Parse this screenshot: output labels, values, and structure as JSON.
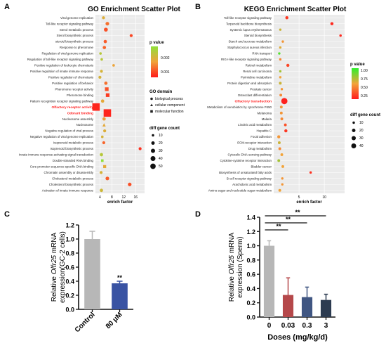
{
  "panels": {
    "a": {
      "label": "A"
    },
    "b": {
      "label": "B"
    },
    "c": {
      "label": "C"
    },
    "d": {
      "label": "D"
    }
  },
  "chart_data": [
    {
      "id": "a",
      "type": "scatter",
      "title": "GO Enrichment Scatter Plot",
      "xlabel": "enrich factor",
      "ylabel": "",
      "xlim": [
        2.5,
        19
      ],
      "xticks": [
        4,
        8,
        12,
        16
      ],
      "grid": true,
      "categories": [
        "Viral genome replication",
        "Toll-like receptor signaling pathway",
        "Sterol metabolic process",
        "Sterol biosynthetic process",
        "steroid biosynthetic process",
        "Response to pheromone",
        "Regulation of viral genome replication",
        "Regulation of toll-like receptor signaling pathway",
        "Positive regulation of leukocyte chemotaxis",
        "Positive regulation of innate immune response",
        "Positive regulation of chemotaxis",
        "Positive regulation of behavior",
        "Pheromone receptor activity",
        "Pheromone binding",
        "Pattern recognition receptor signaling pathway",
        "Olfactory receptor activity",
        "Odorant binding",
        "Nucleosome assembly",
        "Nucleosome",
        "Negative regulation of viral process",
        "Negative regulation of viral genome replication",
        "Isoprenoid metabolic process",
        "Isoprenoid biosynthetic process",
        "Innate immune response-activating signal transduction",
        "Double-stranded RNA binding",
        "Core promoter sequence-specific DNA binding",
        "Chromatin assembly or disassembly",
        "Cholesterol metabolic process",
        "Cholesterol biosynthetic process",
        "Activation of innate immune response"
      ],
      "highlight": [
        "Olfactory receptor activity",
        "Odorant binding"
      ],
      "x": [
        5.2,
        6.5,
        6.0,
        14.5,
        5.8,
        5.5,
        4.2,
        4.6,
        8.6,
        4.5,
        4.0,
        6.0,
        6.3,
        6.6,
        4.9,
        2.7,
        6.5,
        5.4,
        5.4,
        5.6,
        4.8,
        5.3,
        17.5,
        4.5,
        4.8,
        5.6,
        4.4,
        6.5,
        14.0,
        4.5
      ],
      "pvalue": [
        0.0015,
        0.0008,
        0.0005,
        0.0004,
        0.0006,
        0.0007,
        0.002,
        0.002,
        0.0013,
        0.0016,
        0.0016,
        0.0008,
        0.0005,
        0.0003,
        0.0014,
        0.0001,
        0.0001,
        0.0012,
        0.0014,
        0.0015,
        0.0016,
        0.0007,
        0.0002,
        0.002,
        0.0025,
        0.0014,
        0.0016,
        0.0006,
        0.0005,
        0.0017
      ],
      "gene_count": [
        8,
        12,
        14,
        8,
        10,
        10,
        6,
        6,
        6,
        8,
        8,
        10,
        12,
        12,
        10,
        50,
        50,
        10,
        10,
        8,
        6,
        8,
        8,
        10,
        6,
        8,
        8,
        12,
        12,
        10
      ],
      "domain": [
        "biological process",
        "biological process",
        "biological process",
        "biological process",
        "biological process",
        "biological process",
        "biological process",
        "biological process",
        "biological process",
        "biological process",
        "biological process",
        "biological process",
        "molecular function",
        "molecular function",
        "biological process",
        "molecular function",
        "molecular function",
        "biological process",
        "cellular component",
        "biological process",
        "biological process",
        "biological process",
        "biological process",
        "biological process",
        "molecular function",
        "molecular function",
        "biological process",
        "biological process",
        "biological process",
        "biological process"
      ],
      "legend": {
        "pvalue_title": "p value",
        "pvalue_ticks": [
          "0.002",
          "0.001"
        ],
        "domain_title": "GO domain",
        "domain_items": [
          "biological process",
          "cellular component",
          "molecular function"
        ],
        "size_title": "diff gene count",
        "size_items": [
          "10",
          "20",
          "30",
          "40",
          "50"
        ]
      },
      "colors": {
        "high_p": "#8fe03a",
        "mid_p": "#f0a23a",
        "low_p": "#ff1a1a",
        "highlight_text": "#ff2020",
        "grid": "#e6e6e6"
      }
    },
    {
      "id": "b",
      "type": "scatter",
      "title": "KEGG Enrichment Scatter Plot",
      "xlabel": "enrich factor",
      "ylabel": "",
      "xlim": [
        0,
        14
      ],
      "xticks": [
        5,
        10
      ],
      "grid": true,
      "categories": [
        "Toll-like receptor signaling pathway",
        "Terpenoid backbone biosynthesis",
        "Systemic lupus erythematosus",
        "Steroid biosynthesis",
        "Starch and sucrose metabolism",
        "Staphylococcus aureus infection",
        "RNA transport",
        "RIG-I-like receptor signaling pathway",
        "Retinol metabolism",
        "Renal cell carcinoma",
        "Pyrimidine metabolism",
        "Protein digestion and absorption",
        "Prostate cancer",
        "Osteoclast differentiation",
        "Olfactory transduction",
        "Metabolism of xenobiotics by cytochrome P450",
        "Melanoma",
        "Malaria",
        "Linoleic acid metabolism",
        "Hepatitis C",
        "Focal adhesion",
        "ECM-receptor interaction",
        "Drug metabolism",
        "Cytosolic DNA-sensing pathway",
        "Cytokine-cytokine receptor interaction",
        "Bladder cancer",
        "Biosynthesis of unsaturated fatty acids",
        "B cell receptor signaling pathway",
        "Arachidonic acid metabolism",
        "Amino sugar and nucleotide sugar metabolism"
      ],
      "highlight": [
        "Olfactory transduction"
      ],
      "x": [
        2.6,
        11.5,
        1.3,
        13.2,
        1.8,
        1.3,
        1.1,
        1.3,
        2.8,
        1.3,
        1.3,
        1.3,
        1.6,
        1.4,
        2.1,
        1.5,
        1.5,
        1.6,
        2.3,
        2.4,
        1.0,
        1.1,
        1.2,
        1.6,
        1.0,
        1.8,
        7.3,
        1.7,
        1.7,
        1.2
      ],
      "pvalue": [
        0.1,
        0.05,
        0.6,
        0.05,
        0.45,
        0.55,
        0.9,
        0.4,
        0.15,
        0.7,
        0.5,
        0.6,
        0.45,
        0.4,
        0.02,
        0.45,
        0.45,
        0.4,
        0.2,
        0.1,
        0.45,
        0.6,
        0.4,
        0.5,
        0.7,
        0.5,
        0.08,
        0.45,
        0.45,
        0.5
      ],
      "gene_count": [
        10,
        10,
        6,
        6,
        6,
        6,
        6,
        6,
        10,
        6,
        6,
        8,
        6,
        8,
        40,
        8,
        8,
        8,
        8,
        10,
        10,
        8,
        8,
        8,
        8,
        8,
        6,
        6,
        6,
        8
      ],
      "legend": {
        "pvalue_title": "p value",
        "pvalue_ticks": [
          "1.00",
          "0.75",
          "0.50",
          "0.25"
        ],
        "size_title": "diff gene count",
        "size_items": [
          "10",
          "20",
          "30",
          "40"
        ]
      },
      "colors": {
        "top": "#2cef2c",
        "mid": "#f2a43a",
        "low": "#ff1c1c",
        "highlight_text": "#ff2020",
        "grid": "#e6e6e6"
      }
    },
    {
      "id": "c",
      "type": "bar",
      "title": "",
      "categories": [
        "Control",
        "80 μM"
      ],
      "values": [
        1.0,
        0.37
      ],
      "errors": [
        0.11,
        0.03
      ],
      "significance": [
        "",
        "**"
      ],
      "ylabel_parts": [
        "Relative ",
        "Olfr25",
        " mRNA",
        "expression(GC-2 cells)"
      ],
      "ylim": [
        0,
        1.2
      ],
      "yticks": [
        "0.0",
        "0.2",
        "0.4",
        "0.6",
        "0.8",
        "1.0",
        "1.2"
      ],
      "colors": [
        "#b7b7b7",
        "#3953a3"
      ]
    },
    {
      "id": "d",
      "type": "bar",
      "title": "",
      "categories": [
        "0",
        "0.03",
        "0.3",
        "3"
      ],
      "values": [
        1.0,
        0.31,
        0.28,
        0.24
      ],
      "errors": [
        0.07,
        0.24,
        0.14,
        0.08
      ],
      "xlabel": "Doses (mg/kg/d)",
      "ylabel_parts": [
        "Relative ",
        "Olfr25",
        " mRNA",
        "expression (Sperm)"
      ],
      "ylim": [
        0,
        1.4
      ],
      "yticks": [
        "0.0",
        "0.2",
        "0.4",
        "0.6",
        "0.8",
        "1.0",
        "1.2",
        "1.4"
      ],
      "brackets": [
        {
          "from": 0,
          "to": 1,
          "label": "**"
        },
        {
          "from": 0,
          "to": 2,
          "label": "**"
        },
        {
          "from": 0,
          "to": 3,
          "label": "**"
        }
      ],
      "colors": [
        "#b7b7b7",
        "#b5484a",
        "#405682",
        "#2c3b50"
      ]
    }
  ]
}
